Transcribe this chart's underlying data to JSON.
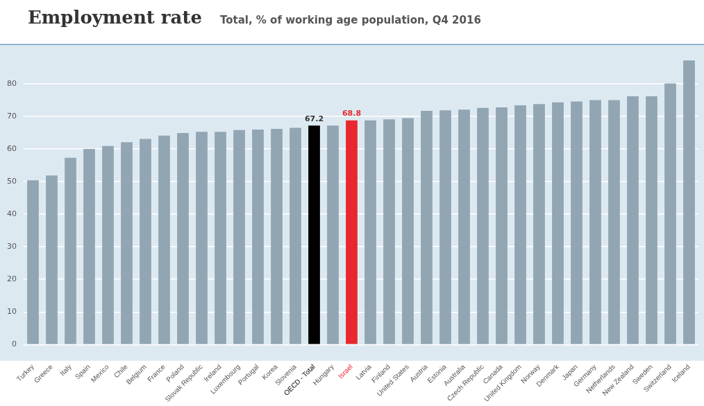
{
  "chart_data": {
    "type": "bar",
    "title": "Employment rate",
    "subtitle": "Total, % of working age population, Q4 2016",
    "categories": [
      "Turkey",
      "Greece",
      "Italy",
      "Spain",
      "Mexico",
      "Chile",
      "Belgium",
      "France",
      "Poland",
      "Slovak Republic",
      "Ireland",
      "Luxembourg",
      "Portugal",
      "Korea",
      "Slovenia",
      "OECD - Total",
      "Hungary",
      "Israel",
      "Latvia",
      "Finland",
      "United States",
      "Austria",
      "Estonia",
      "Australia",
      "Czech Republic",
      "Canada",
      "United Kingdom",
      "Norway",
      "Denmark",
      "Japan",
      "Germany",
      "Netherlands",
      "New Zealand",
      "Sweden",
      "Switzerland",
      "Iceland"
    ],
    "values": [
      50.4,
      51.9,
      57.3,
      60.0,
      60.9,
      62.1,
      63.1,
      64.1,
      64.9,
      65.3,
      65.3,
      65.8,
      66.0,
      66.2,
      66.5,
      67.2,
      67.2,
      68.8,
      68.8,
      69.1,
      69.5,
      71.7,
      71.9,
      72.1,
      72.6,
      72.8,
      73.4,
      73.8,
      74.3,
      74.6,
      75.0,
      75.0,
      76.2,
      76.2,
      80.1,
      87.2
    ],
    "colors": [
      "#91a5b2",
      "#91a5b2",
      "#91a5b2",
      "#91a5b2",
      "#91a5b2",
      "#91a5b2",
      "#91a5b2",
      "#91a5b2",
      "#91a5b2",
      "#91a5b2",
      "#91a5b2",
      "#91a5b2",
      "#91a5b2",
      "#91a5b2",
      "#91a5b2",
      "#000000",
      "#91a5b2",
      "#e8282e",
      "#91a5b2",
      "#91a5b2",
      "#91a5b2",
      "#91a5b2",
      "#91a5b2",
      "#91a5b2",
      "#91a5b2",
      "#91a5b2",
      "#91a5b2",
      "#91a5b2",
      "#91a5b2",
      "#91a5b2",
      "#91a5b2",
      "#91a5b2",
      "#91a5b2",
      "#91a5b2",
      "#91a5b2",
      "#91a5b2"
    ],
    "value_labels": [
      null,
      null,
      null,
      null,
      null,
      null,
      null,
      null,
      null,
      null,
      null,
      null,
      null,
      null,
      null,
      "67.2",
      null,
      "68.8",
      null,
      null,
      null,
      null,
      null,
      null,
      null,
      null,
      null,
      null,
      null,
      null,
      null,
      null,
      null,
      null,
      null,
      null
    ],
    "ylim": [
      -5,
      92
    ],
    "yticks": [
      0,
      10,
      20,
      30,
      40,
      50,
      60,
      70,
      80
    ],
    "grid": "y",
    "legend": false
  }
}
